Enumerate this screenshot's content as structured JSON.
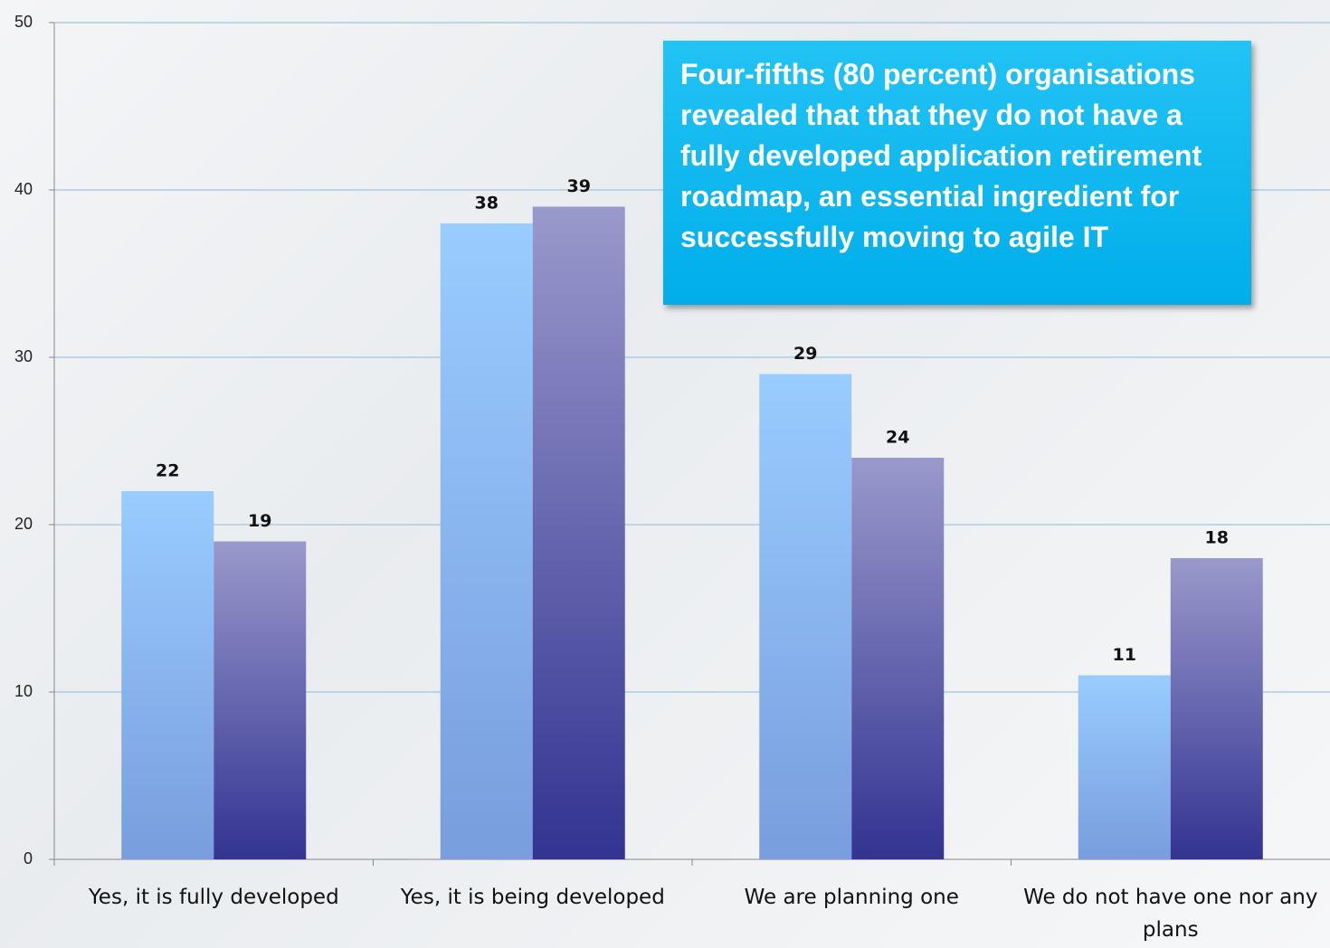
{
  "chart_data": {
    "type": "bar",
    "annotation": "Four-fifths (80 percent) organisations revealed that that they do not have a fully developed application retirement roadmap, an essential ingredient for successfully moving to agile IT",
    "categories": [
      "Yes, it is fully developed",
      "Yes, it is being developed",
      "We are planning one",
      "We do not have one nor any plans"
    ],
    "series": [
      {
        "color": "#99ccff",
        "values": [
          22,
          38,
          29,
          11
        ]
      },
      {
        "color": "#9999cc",
        "values": [
          19,
          39,
          24,
          18
        ]
      }
    ],
    "ylim": [
      0,
      50
    ],
    "yticks": [
      0,
      10,
      20,
      30,
      40,
      50
    ],
    "grid": true
  }
}
